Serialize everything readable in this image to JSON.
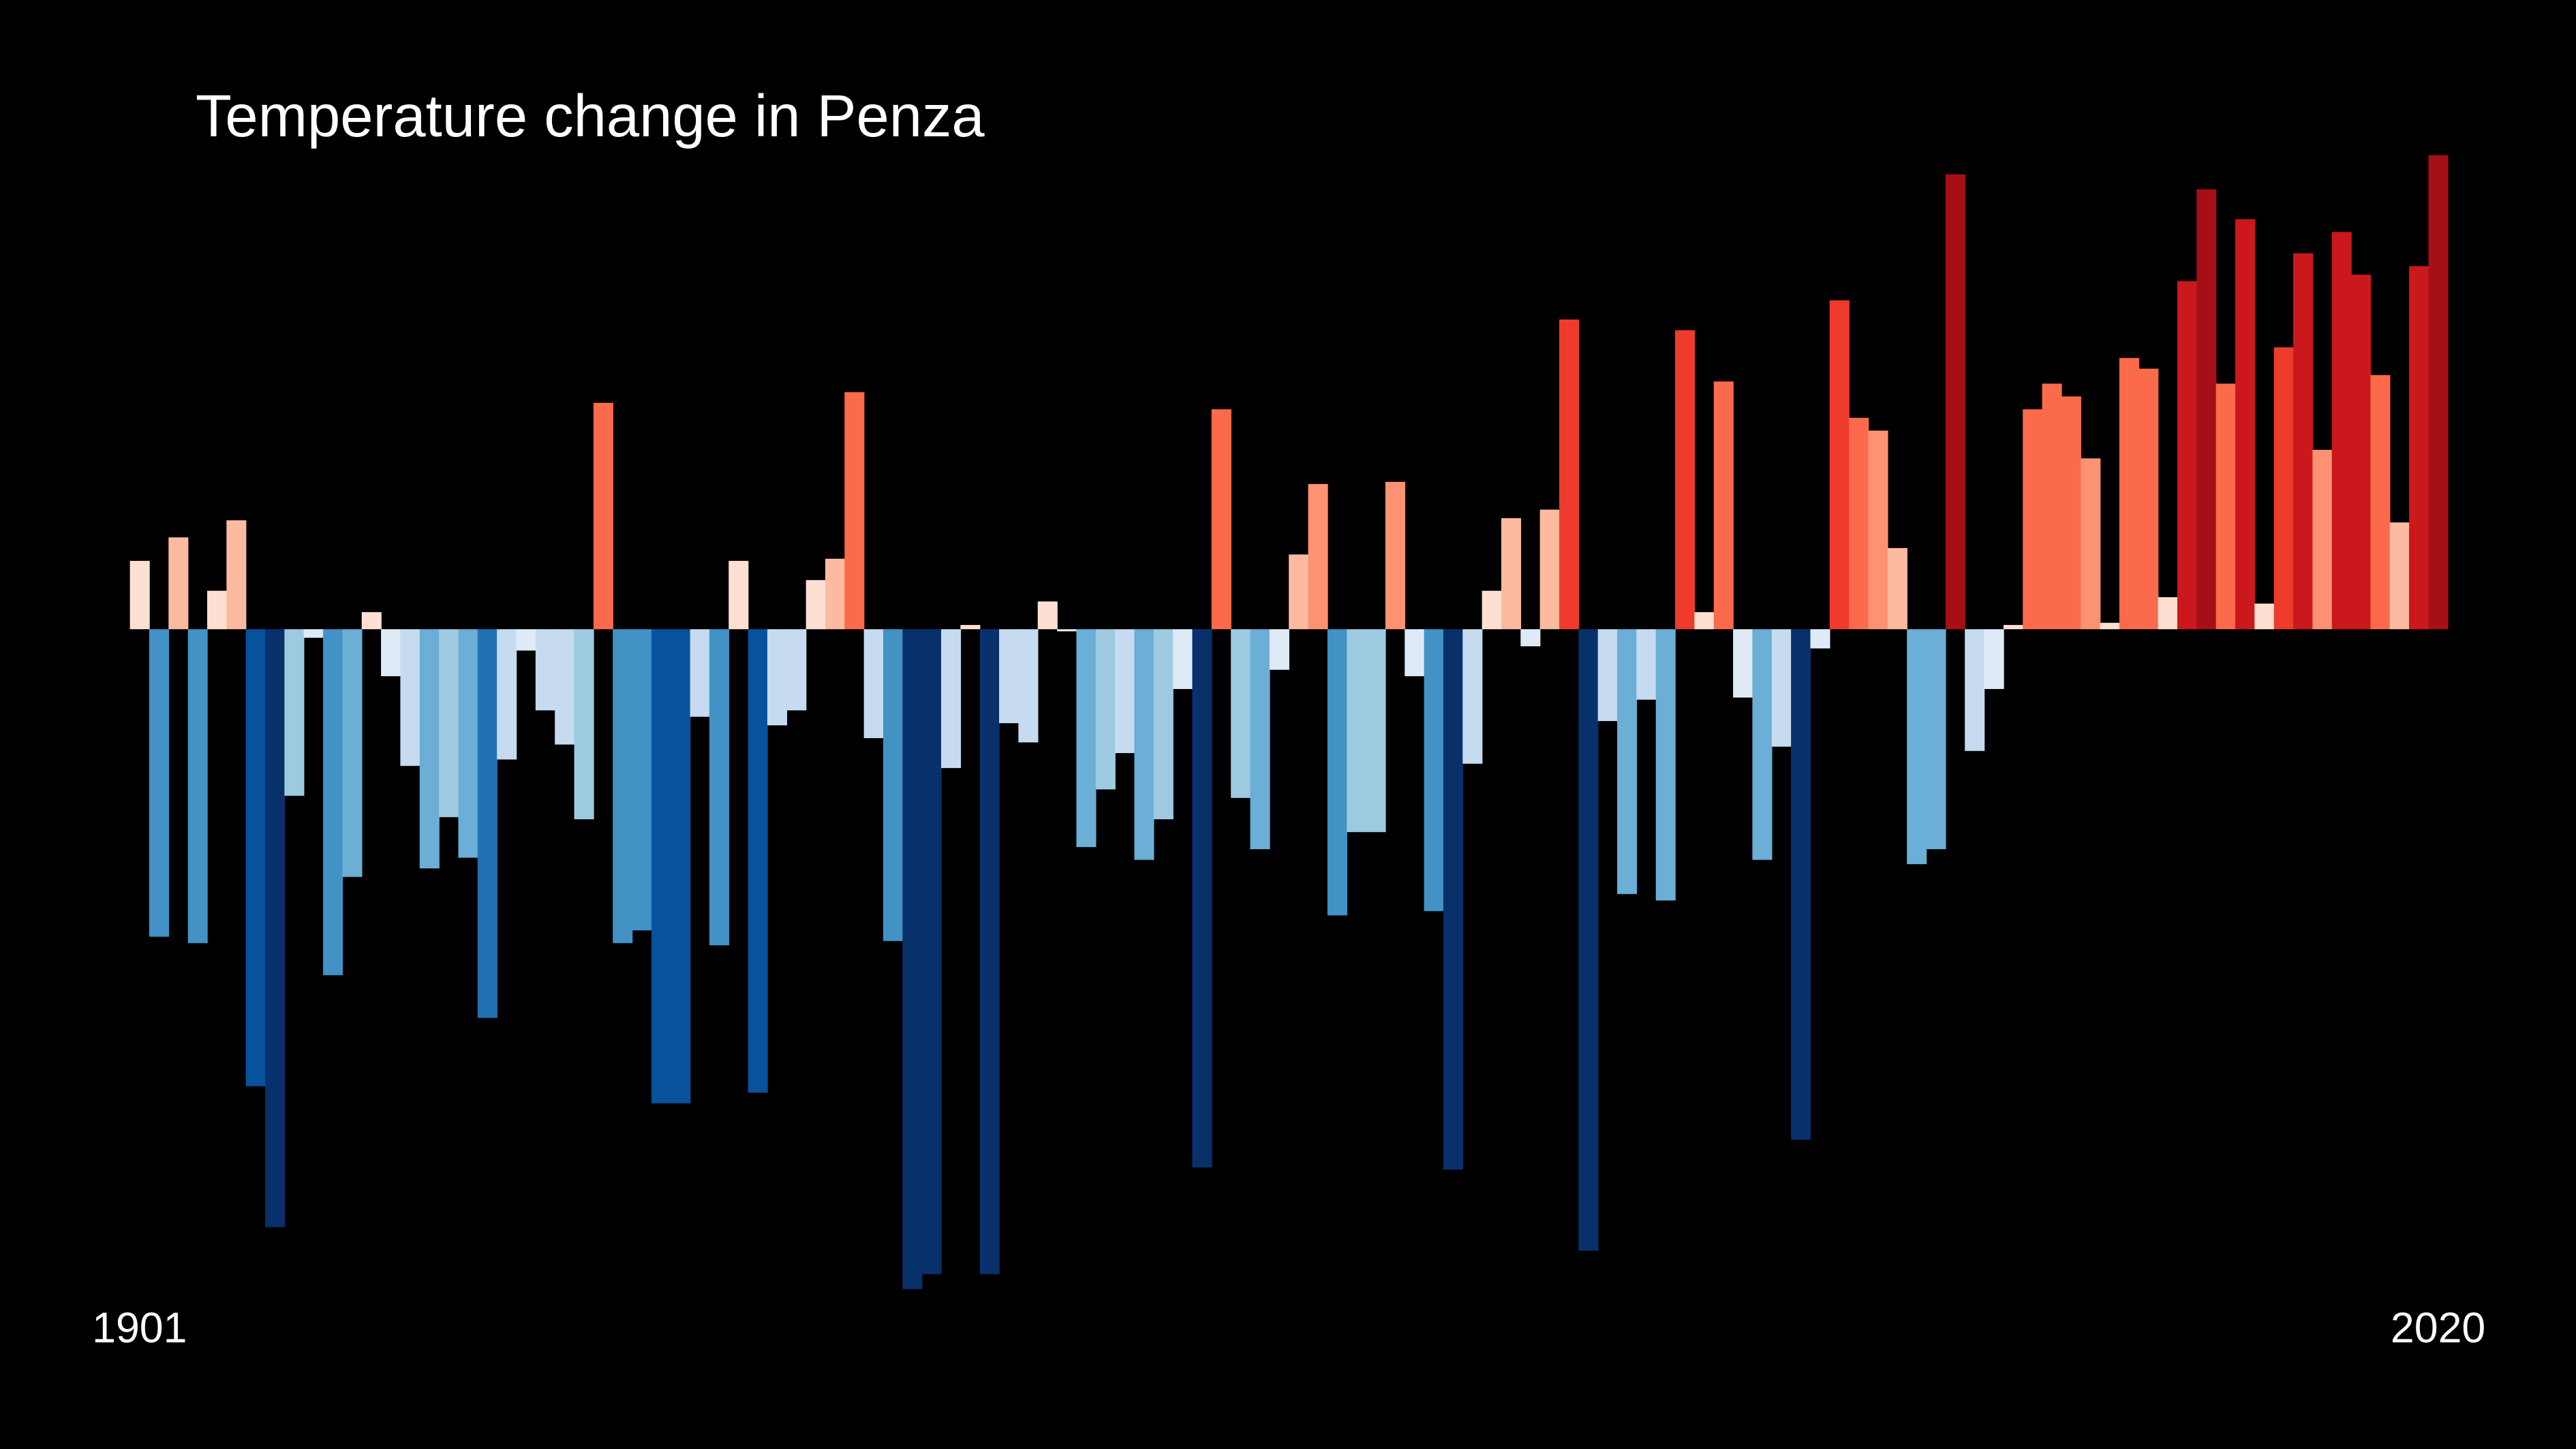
{
  "chart_data": {
    "type": "bar",
    "title": "Temperature change in Penza",
    "categories": [
      "1901",
      null,
      null,
      null,
      null,
      null,
      null,
      null,
      null,
      null,
      null,
      null,
      null,
      null,
      null,
      null,
      null,
      null,
      null,
      null,
      null,
      null,
      null,
      null,
      null,
      null,
      null,
      null,
      null,
      null,
      null,
      null,
      null,
      null,
      null,
      null,
      null,
      null,
      null,
      null,
      null,
      null,
      null,
      null,
      null,
      null,
      null,
      null,
      null,
      null,
      null,
      null,
      null,
      null,
      null,
      null,
      null,
      null,
      null,
      null,
      null,
      null,
      null,
      null,
      null,
      null,
      null,
      null,
      null,
      null,
      null,
      null,
      null,
      null,
      null,
      null,
      null,
      null,
      null,
      null,
      null,
      null,
      null,
      null,
      null,
      null,
      null,
      null,
      null,
      null,
      null,
      null,
      null,
      null,
      null,
      null,
      null,
      null,
      null,
      null,
      null,
      null,
      null,
      null,
      null,
      null,
      null,
      null,
      null,
      null,
      null,
      null,
      null,
      null,
      null,
      null,
      null,
      null,
      null,
      "2020"
    ],
    "values": [
      0.32,
      -1.44,
      0.43,
      -1.47,
      0.18,
      0.51,
      -2.14,
      -2.8,
      -0.78,
      -0.04,
      -1.62,
      -1.16,
      0.08,
      -0.22,
      -0.64,
      -1.12,
      -0.88,
      -1.07,
      -1.82,
      -0.61,
      -0.1,
      -0.38,
      -0.54,
      -0.89,
      1.06,
      -1.47,
      -1.41,
      -2.22,
      -2.22,
      -0.41,
      -1.48,
      0.32,
      -2.17,
      -0.45,
      -0.38,
      0.23,
      0.33,
      1.11,
      -0.51,
      -1.46,
      -3.09,
      -3.02,
      -0.65,
      0.02,
      -3.02,
      -0.44,
      -0.53,
      0.13,
      -0.01,
      -1.02,
      -0.75,
      -0.58,
      -1.08,
      -0.89,
      -0.28,
      -2.52,
      1.03,
      -0.79,
      -1.03,
      -0.19,
      0.35,
      0.68,
      -1.34,
      -0.95,
      -0.95,
      0.69,
      -0.22,
      -1.32,
      -2.53,
      -0.63,
      0.18,
      0.52,
      -0.08,
      0.56,
      1.45,
      -2.91,
      -0.43,
      -1.24,
      -0.33,
      -1.27,
      1.4,
      0.08,
      1.16,
      -0.32,
      -1.08,
      -0.55,
      -2.39,
      -0.09,
      1.54,
      0.99,
      0.93,
      0.38,
      -1.1,
      -1.03,
      2.13,
      -0.57,
      -0.28,
      0.02,
      1.03,
      1.15,
      1.09,
      0.8,
      0.03,
      1.27,
      1.22,
      0.15,
      1.63,
      2.06,
      1.15,
      1.92,
      0.12,
      1.32,
      1.76,
      0.84,
      1.86,
      1.66,
      1.19,
      0.5,
      1.7,
      2.22
    ],
    "ylim": [
      -3.2,
      2.4
    ],
    "color_scale": {
      "min": -2.6,
      "max": 2.6,
      "colors": [
        "#08306b",
        "#08519c",
        "#2171b5",
        "#4292c6",
        "#6baed6",
        "#9ecae1",
        "#c6dbef",
        "#deebf7",
        "#fee0d2",
        "#fcbba1",
        "#fc9272",
        "#fb6a4a",
        "#ef3b2c",
        "#cb181d",
        "#a50f15",
        "#67000d"
      ]
    },
    "background": "#000000"
  }
}
